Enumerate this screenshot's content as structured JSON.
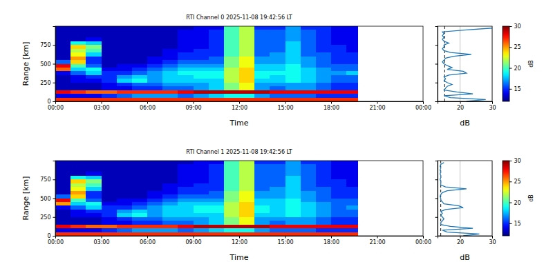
{
  "chart_data": [
    {
      "type": "heatmap",
      "title": "RTI Channel 0 2025-11-08 19:42:56 LT",
      "x_label": "Time",
      "y_label": "Range [km]",
      "xlim": [
        0,
        24
      ],
      "xticks": [
        {
          "value": 0,
          "label": "00:00"
        },
        {
          "value": 3,
          "label": "03:00"
        },
        {
          "value": 6,
          "label": "06:00"
        },
        {
          "value": 9,
          "label": "09:00"
        },
        {
          "value": 12,
          "label": "12:00"
        },
        {
          "value": 15,
          "label": "15:00"
        },
        {
          "value": 18,
          "label": "18:00"
        },
        {
          "value": 21,
          "label": "21:00"
        },
        {
          "value": 24,
          "label": "00:00"
        }
      ],
      "ylim": [
        0,
        1000
      ],
      "yticks": [
        0,
        250,
        500,
        750
      ],
      "x": [
        0,
        1,
        2,
        3,
        4,
        5,
        6,
        7,
        8,
        9,
        10,
        11,
        12,
        13,
        14,
        15,
        16,
        17,
        18,
        19,
        19.75
      ],
      "y": [
        0,
        50,
        100,
        150,
        200,
        250,
        300,
        350,
        400,
        450,
        500,
        550,
        600,
        650,
        700,
        750,
        800,
        850,
        900,
        950,
        1000
      ],
      "z": [
        [
          27,
          27,
          27,
          27,
          27,
          27,
          27,
          27,
          27,
          27,
          27,
          27,
          27,
          27,
          27,
          27,
          27,
          27,
          27,
          27
        ],
        [
          14,
          14,
          14,
          15,
          16,
          17,
          17,
          17,
          16,
          17,
          18,
          19,
          19,
          17,
          16,
          16,
          16,
          15,
          15,
          15
        ],
        [
          28,
          27,
          26,
          26,
          27,
          27,
          27,
          27,
          28,
          29,
          29,
          29,
          29,
          29,
          28,
          28,
          28,
          28,
          28,
          28
        ],
        [
          13,
          13,
          13,
          14,
          14,
          15,
          15,
          16,
          16,
          17,
          18,
          21,
          23,
          17,
          16,
          17,
          17,
          16,
          15,
          15
        ],
        [
          13,
          13,
          13,
          14,
          15,
          16,
          16,
          17,
          17,
          17,
          18,
          21,
          23,
          17,
          17,
          17,
          17,
          16,
          15,
          15
        ],
        [
          13,
          14,
          14,
          15,
          18,
          19,
          17,
          18,
          18,
          18,
          18,
          22,
          24,
          18,
          18,
          19,
          18,
          17,
          16,
          16
        ],
        [
          13,
          14,
          15,
          15,
          17,
          18,
          17,
          18,
          18,
          19,
          19,
          22,
          24,
          19,
          18,
          19,
          18,
          17,
          16,
          16
        ],
        [
          14,
          16,
          18,
          15,
          15,
          16,
          17,
          18,
          19,
          19,
          19,
          22,
          24,
          19,
          19,
          19,
          18,
          17,
          17,
          18
        ],
        [
          26,
          18,
          19,
          14,
          14,
          15,
          16,
          17,
          18,
          18,
          18,
          22,
          24,
          18,
          18,
          19,
          18,
          17,
          16,
          16
        ],
        [
          28,
          20,
          16,
          13,
          14,
          14,
          15,
          16,
          17,
          17,
          17,
          21,
          23,
          18,
          18,
          19,
          17,
          16,
          16,
          16
        ],
        [
          16,
          24,
          15,
          13,
          13,
          13,
          14,
          15,
          16,
          16,
          16,
          21,
          23,
          17,
          17,
          18,
          17,
          16,
          15,
          15
        ],
        [
          13,
          25,
          15,
          13,
          13,
          13,
          14,
          14,
          15,
          15,
          16,
          21,
          23,
          17,
          17,
          18,
          17,
          16,
          15,
          15
        ],
        [
          13,
          23,
          18,
          13,
          13,
          13,
          13,
          14,
          15,
          15,
          15,
          20,
          22,
          16,
          17,
          18,
          16,
          16,
          15,
          15
        ],
        [
          13,
          22,
          20,
          13,
          13,
          13,
          13,
          14,
          14,
          15,
          15,
          20,
          22,
          16,
          16,
          18,
          16,
          15,
          15,
          14
        ],
        [
          13,
          24,
          21,
          13,
          13,
          13,
          13,
          13,
          14,
          14,
          15,
          20,
          22,
          16,
          16,
          18,
          16,
          15,
          15,
          14
        ],
        [
          13,
          19,
          18,
          13,
          13,
          13,
          13,
          13,
          14,
          14,
          15,
          20,
          22,
          16,
          16,
          18,
          16,
          15,
          14,
          14
        ],
        [
          13,
          13,
          14,
          13,
          13,
          13,
          13,
          13,
          14,
          14,
          15,
          20,
          22,
          16,
          16,
          17,
          16,
          15,
          14,
          14
        ],
        [
          13,
          13,
          13,
          13,
          13,
          13,
          13,
          13,
          14,
          14,
          15,
          20,
          22,
          16,
          16,
          17,
          16,
          15,
          14,
          14
        ],
        [
          13,
          13,
          13,
          13,
          13,
          13,
          13,
          13,
          14,
          14,
          15,
          20,
          22,
          16,
          16,
          17,
          16,
          15,
          14,
          14
        ],
        [
          13,
          13,
          13,
          13,
          13,
          13,
          13,
          13,
          13,
          14,
          14,
          20,
          22,
          15,
          15,
          17,
          15,
          15,
          14,
          14
        ]
      ],
      "colorbar": {
        "label": "dB",
        "range": [
          12,
          30
        ],
        "ticks": [
          15,
          20,
          25,
          30
        ]
      },
      "profile": {
        "x_label": "dB",
        "xlim": [
          13,
          30
        ],
        "xticks": [
          20,
          30
        ],
        "grid": true,
        "tick_labels": "x",
        "noise_level": 15.2,
        "y": [
          0,
          25,
          50,
          75,
          100,
          125,
          150,
          175,
          200,
          225,
          250,
          275,
          300,
          325,
          350,
          375,
          400,
          425,
          450,
          475,
          500,
          525,
          550,
          575,
          600,
          625,
          650,
          675,
          700,
          725,
          750,
          775,
          800,
          825,
          850,
          875,
          900,
          925,
          950,
          975
        ],
        "values": [
          22,
          28,
          17,
          15,
          24,
          19,
          15,
          15.5,
          16,
          17.5,
          16,
          15,
          15.5,
          15,
          16.5,
          22,
          21,
          16,
          17.5,
          16,
          15,
          14.5,
          15,
          15.5,
          18,
          23.5,
          17,
          15,
          14.5,
          15,
          15,
          16.5,
          15,
          14.5,
          15,
          14.5,
          15,
          14.5,
          22,
          30
        ]
      }
    },
    {
      "type": "heatmap",
      "title": "RTI Channel 1 2025-11-08 19:42:56 LT",
      "x_label": "Time",
      "y_label": "Range [km]",
      "xlim": [
        0,
        24
      ],
      "xticks": [
        {
          "value": 0,
          "label": "00:00"
        },
        {
          "value": 3,
          "label": "03:00"
        },
        {
          "value": 6,
          "label": "06:00"
        },
        {
          "value": 9,
          "label": "09:00"
        },
        {
          "value": 12,
          "label": "12:00"
        },
        {
          "value": 15,
          "label": "15:00"
        },
        {
          "value": 18,
          "label": "18:00"
        },
        {
          "value": 21,
          "label": "21:00"
        },
        {
          "value": 24,
          "label": "00:00"
        }
      ],
      "ylim": [
        0,
        1000
      ],
      "yticks": [
        0,
        250,
        500,
        750
      ],
      "x": [
        0,
        1,
        2,
        3,
        4,
        5,
        6,
        7,
        8,
        9,
        10,
        11,
        12,
        13,
        14,
        15,
        16,
        17,
        18,
        19,
        19.75
      ],
      "y": [
        0,
        50,
        100,
        150,
        200,
        250,
        300,
        350,
        400,
        450,
        500,
        550,
        600,
        650,
        700,
        750,
        800,
        850,
        900,
        950,
        1000
      ],
      "z": [
        [
          27,
          27,
          27,
          27,
          27,
          27,
          27,
          27,
          27,
          27,
          27,
          27,
          27,
          27,
          27,
          27,
          27,
          27,
          27,
          27
        ],
        [
          14,
          14,
          14,
          15,
          16,
          17,
          17,
          17,
          16,
          17,
          18,
          19,
          19,
          17,
          16,
          16,
          16,
          15,
          15,
          15
        ],
        [
          28,
          27,
          26,
          26,
          27,
          27,
          27,
          27,
          28,
          29,
          29,
          29,
          29,
          29,
          28,
          28,
          28,
          28,
          28,
          28
        ],
        [
          13,
          13,
          13,
          14,
          14,
          15,
          15,
          16,
          16,
          17,
          18,
          21,
          23,
          17,
          16,
          17,
          17,
          16,
          15,
          15
        ],
        [
          13,
          13,
          13,
          14,
          15,
          16,
          16,
          17,
          17,
          17,
          18,
          21,
          23,
          17,
          17,
          17,
          17,
          16,
          15,
          15
        ],
        [
          13,
          14,
          14,
          15,
          18,
          19,
          17,
          18,
          18,
          18,
          18,
          22,
          24,
          18,
          18,
          19,
          18,
          17,
          16,
          16
        ],
        [
          13,
          14,
          15,
          15,
          17,
          18,
          17,
          18,
          18,
          19,
          19,
          22,
          24,
          19,
          18,
          19,
          18,
          17,
          16,
          16
        ],
        [
          14,
          16,
          18,
          15,
          15,
          16,
          17,
          18,
          18,
          19,
          19,
          22,
          24,
          19,
          18,
          19,
          18,
          17,
          16,
          17
        ],
        [
          25,
          18,
          19,
          14,
          14,
          15,
          16,
          17,
          18,
          18,
          18,
          22,
          24,
          18,
          18,
          19,
          18,
          17,
          16,
          16
        ],
        [
          28,
          20,
          16,
          13,
          14,
          14,
          15,
          16,
          17,
          17,
          17,
          21,
          23,
          18,
          18,
          19,
          17,
          16,
          16,
          16
        ],
        [
          16,
          24,
          15,
          13,
          13,
          13,
          14,
          15,
          16,
          16,
          16,
          21,
          23,
          17,
          17,
          18,
          17,
          16,
          15,
          15
        ],
        [
          13,
          25,
          15,
          13,
          13,
          13,
          14,
          14,
          15,
          15,
          16,
          21,
          23,
          17,
          17,
          18,
          17,
          16,
          15,
          15
        ],
        [
          13,
          23,
          18,
          13,
          13,
          13,
          13,
          14,
          15,
          15,
          15,
          20,
          22,
          16,
          17,
          18,
          16,
          16,
          15,
          15
        ],
        [
          13,
          22,
          20,
          13,
          13,
          13,
          13,
          14,
          14,
          15,
          15,
          20,
          22,
          16,
          16,
          18,
          16,
          15,
          15,
          14
        ],
        [
          13,
          24,
          21,
          13,
          13,
          13,
          13,
          13,
          14,
          14,
          15,
          20,
          22,
          16,
          16,
          18,
          16,
          15,
          15,
          14
        ],
        [
          13,
          19,
          18,
          13,
          13,
          13,
          13,
          13,
          14,
          14,
          15,
          20,
          22,
          16,
          16,
          18,
          16,
          15,
          14,
          14
        ],
        [
          13,
          13,
          14,
          13,
          13,
          13,
          13,
          13,
          14,
          14,
          15,
          20,
          22,
          16,
          16,
          17,
          16,
          15,
          14,
          14
        ],
        [
          13,
          13,
          13,
          13,
          13,
          13,
          13,
          13,
          14,
          14,
          15,
          20,
          22,
          16,
          16,
          17,
          16,
          15,
          14,
          14
        ],
        [
          13,
          13,
          13,
          13,
          13,
          13,
          13,
          13,
          14,
          14,
          15,
          20,
          22,
          16,
          16,
          17,
          16,
          15,
          14,
          14
        ],
        [
          13,
          13,
          13,
          13,
          13,
          13,
          13,
          13,
          13,
          14,
          14,
          20,
          22,
          15,
          15,
          17,
          15,
          15,
          14,
          14
        ]
      ],
      "colorbar": {
        "label": "dB",
        "range": [
          12,
          30
        ],
        "ticks": [
          15,
          20,
          25,
          30
        ]
      },
      "profile": {
        "x_label": "dB",
        "xlim": [
          13,
          30
        ],
        "xticks": [
          20,
          30
        ],
        "grid": true,
        "tick_labels": "x",
        "noise_level": 14,
        "y": [
          0,
          25,
          50,
          75,
          100,
          125,
          150,
          175,
          200,
          225,
          250,
          275,
          300,
          325,
          350,
          375,
          400,
          425,
          450,
          475,
          500,
          525,
          550,
          575,
          600,
          625,
          650,
          675,
          700,
          725,
          750,
          775,
          800,
          825,
          850,
          875,
          900,
          925,
          950,
          975
        ],
        "values": [
          21,
          26,
          16,
          14.5,
          24,
          17,
          14,
          14,
          14.5,
          15,
          14.5,
          14,
          14.5,
          14,
          15.5,
          21,
          19.5,
          15,
          14.5,
          14,
          14,
          13.8,
          14,
          14.5,
          16,
          22,
          15.5,
          14,
          14,
          14,
          13.8,
          14,
          14,
          13.8,
          14,
          13.8,
          14,
          13.8,
          14,
          15
        ]
      }
    }
  ]
}
